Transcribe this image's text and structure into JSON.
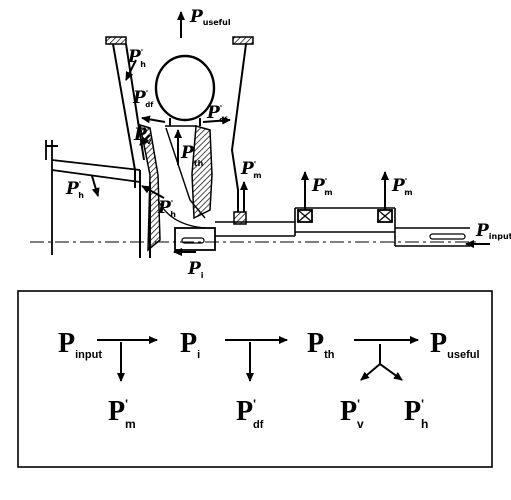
{
  "machine_labels": {
    "useful": {
      "main": "P",
      "sub": "useful",
      "prime": ""
    },
    "h_top": {
      "main": "P",
      "sub": "h",
      "prime": "'"
    },
    "df_left": {
      "main": "P",
      "sub": "df",
      "prime": "'"
    },
    "df_right": {
      "main": "P",
      "sub": "df",
      "prime": "'"
    },
    "v": {
      "main": "P",
      "sub": "v",
      "prime": "'"
    },
    "th": {
      "main": "P",
      "sub": "th",
      "prime": ""
    },
    "m_center": {
      "main": "P",
      "sub": "m",
      "prime": "'"
    },
    "m_bearing_left": {
      "main": "P",
      "sub": "m",
      "prime": "'"
    },
    "m_bearing_right": {
      "main": "P",
      "sub": "m",
      "prime": "'"
    },
    "h_inlet": {
      "main": "P",
      "sub": "h",
      "prime": "'"
    },
    "h_lower": {
      "main": "P",
      "sub": "h",
      "prime": "'"
    },
    "input": {
      "main": "P",
      "sub": "input",
      "prime": ""
    },
    "i": {
      "main": "P",
      "sub": "i",
      "prime": ""
    }
  },
  "flow": {
    "input": {
      "main": "P",
      "sub": "input",
      "prime": ""
    },
    "i": {
      "main": "P",
      "sub": "i",
      "prime": ""
    },
    "th": {
      "main": "P",
      "sub": "th",
      "prime": ""
    },
    "useful": {
      "main": "P",
      "sub": "useful",
      "prime": ""
    },
    "loss_m": {
      "main": "P",
      "sub": "m",
      "prime": "'"
    },
    "loss_df": {
      "main": "P",
      "sub": "df",
      "prime": "'"
    },
    "loss_v": {
      "main": "P",
      "sub": "v",
      "prime": "'"
    },
    "loss_h": {
      "main": "P",
      "sub": "h",
      "prime": "'"
    }
  }
}
